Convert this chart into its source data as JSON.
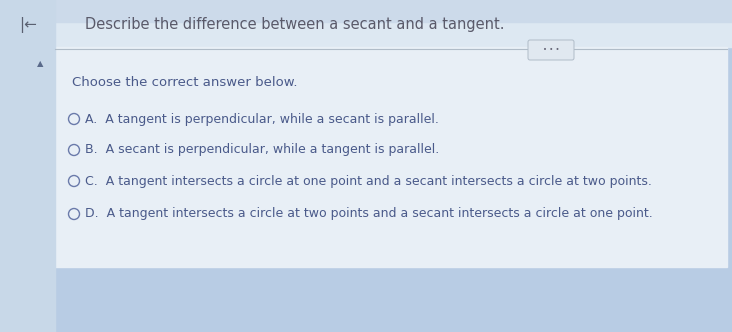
{
  "title": "Describe the difference between a secant and a tangent.",
  "subtitle": "Choose the correct answer below.",
  "options": [
    {
      "label": "A.",
      "text": "  A tangent is perpendicular, while a secant is parallel."
    },
    {
      "label": "B.",
      "text": "  A secant is perpendicular, while a tangent is parallel."
    },
    {
      "label": "C.",
      "text": "  A tangent intersects a circle at one point and a secant intersects a circle at two points."
    },
    {
      "label": "D.",
      "text": "  A tangent intersects a circle at two points and a secant intersects a circle at one point."
    }
  ],
  "bg_outer": "#b8cce4",
  "bg_top_strip": "#c5d8ea",
  "bg_main": "#dde8f2",
  "bg_left_strip": "#c8d8e8",
  "bg_white_panel": "#e8eff6",
  "text_color_title": "#5a5a6a",
  "text_color_main": "#4a5a8a",
  "radio_color": "#6a7aaa",
  "separator_color": "#b0bcc8",
  "btn_color": "#e0e8f0",
  "btn_border": "#b0bcc8",
  "title_fontsize": 10.5,
  "subtitle_fontsize": 9.5,
  "option_fontsize": 9.0,
  "fig_width": 7.32,
  "fig_height": 3.32,
  "dpi": 100
}
